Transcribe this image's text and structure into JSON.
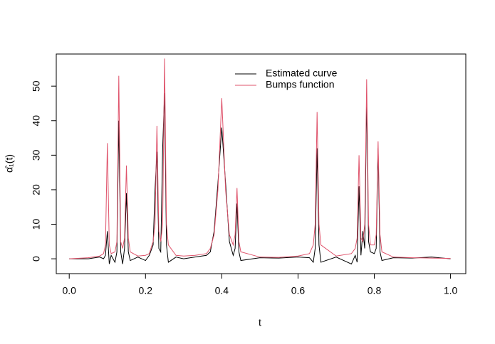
{
  "chart_data": {
    "type": "line",
    "xlabel": "t",
    "ylabel": "α̂₁(t)",
    "x": [
      0,
      0.05,
      0.08,
      0.09,
      0.095,
      0.1,
      0.105,
      0.11,
      0.12,
      0.125,
      0.13,
      0.135,
      0.14,
      0.145,
      0.15,
      0.155,
      0.16,
      0.18,
      0.2,
      0.21,
      0.22,
      0.225,
      0.23,
      0.235,
      0.24,
      0.245,
      0.25,
      0.255,
      0.26,
      0.28,
      0.3,
      0.33,
      0.36,
      0.37,
      0.38,
      0.39,
      0.4,
      0.41,
      0.42,
      0.43,
      0.435,
      0.44,
      0.445,
      0.45,
      0.5,
      0.55,
      0.6,
      0.63,
      0.64,
      0.645,
      0.65,
      0.655,
      0.66,
      0.7,
      0.74,
      0.75,
      0.755,
      0.76,
      0.765,
      0.77,
      0.775,
      0.78,
      0.785,
      0.79,
      0.8,
      0.805,
      0.81,
      0.815,
      0.82,
      0.85,
      0.9,
      0.95,
      1
    ],
    "series": [
      {
        "name": "Estimated curve",
        "color": "#000000",
        "values": [
          0,
          0,
          0.5,
          0,
          1,
          8,
          -1.5,
          1,
          -1,
          2,
          40,
          2,
          -1.5,
          3,
          19,
          2,
          -0.5,
          0.5,
          -0.5,
          1,
          4,
          20,
          31,
          3,
          2,
          32,
          48,
          4,
          -1,
          0.5,
          0,
          0.5,
          1,
          2,
          8,
          22,
          38,
          22,
          5,
          1,
          3,
          16,
          2,
          -0.5,
          0.3,
          0.2,
          0.5,
          0.3,
          -1,
          3,
          32,
          4,
          -1,
          0.5,
          -1.5,
          1,
          -1,
          21,
          1,
          8,
          3,
          47,
          5,
          2,
          1.5,
          3,
          32,
          2,
          -0.5,
          0.3,
          0.2,
          0.5,
          0
        ]
      },
      {
        "name": "Bumps function",
        "color": "#df536b",
        "values": [
          0,
          0.3,
          0.8,
          1.5,
          4,
          33.5,
          4,
          1.5,
          2,
          5,
          53,
          5,
          3,
          6,
          27,
          6,
          2,
          0.8,
          1,
          1.5,
          5,
          10,
          38.5,
          8,
          5,
          10,
          58,
          10,
          4,
          1,
          0.8,
          1,
          1.5,
          3,
          7,
          20,
          46.5,
          20,
          7,
          4,
          7,
          20.5,
          5,
          2,
          0.5,
          0.4,
          0.8,
          1.5,
          4,
          10,
          42.5,
          10,
          4,
          0.8,
          1.5,
          3,
          6,
          30,
          6,
          5,
          10,
          52,
          10,
          4,
          4,
          7,
          34,
          7,
          2,
          0.5,
          0.3,
          0.2,
          0.1
        ]
      }
    ],
    "xlim": [
      -0.034,
      1.04
    ],
    "ylim": [
      -4.3,
      59.3
    ],
    "xticks": [
      {
        "value": 0,
        "label": "0.0"
      },
      {
        "value": 0.2,
        "label": "0.2"
      },
      {
        "value": 0.4,
        "label": "0.4"
      },
      {
        "value": 0.6,
        "label": "0.6"
      },
      {
        "value": 0.8,
        "label": "0.8"
      },
      {
        "value": 1,
        "label": "1.0"
      }
    ],
    "yticks": [
      0,
      10,
      20,
      30,
      40,
      50
    ],
    "legend": "top"
  }
}
